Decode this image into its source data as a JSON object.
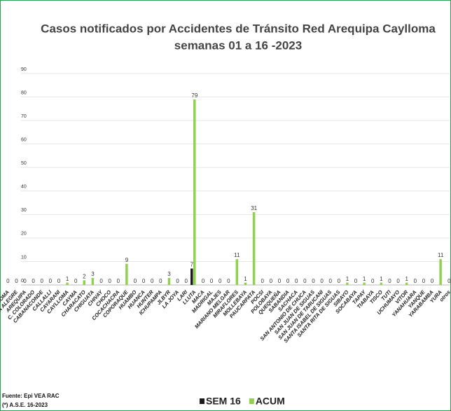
{
  "chart_data": {
    "type": "bar",
    "title": "Casos notificados  por Accidentes de Tránsito Red Arequipa Caylloma",
    "subtitle": "semanas 01 a 16 -2023",
    "categories": [
      "ACHOMA",
      "ALTO SELVA ALEGRE",
      "AREQUIPA",
      "C. COLORADO",
      "CABANACONDE",
      "CALLALLI",
      "CAYARANI",
      "CAYLLOMA",
      "CAYMA",
      "CHARACATO",
      "CHIGUATA",
      "CHIVAY",
      "CHOCO",
      "COCACHACRA",
      "COPORAQUE",
      "HUAMBO",
      "HUANCA",
      "HUNTER",
      "ICHUPAMPA",
      "JLBYR",
      "LA JOYA",
      "LARI",
      "LLUTA",
      "MACA",
      "MADRIGAL",
      "MAJES",
      "MARIANO MELGAR",
      "MIRAFLORES",
      "MOLLEBAYA",
      "PAUCARPATA",
      "POCSI",
      "POLOBAYA",
      "QUEQUEÑA",
      "SABANDIA",
      "SACHACA",
      "SAN ANTONIO DE CHUCA",
      "SAN JUAN DE SIGUAS",
      "SAN JUAN DE TARUCANI",
      "SANTA ISABEL DE SIGUAS",
      "SANTA RITA DE SIGUAS",
      "SIBAYO",
      "SOCABAYA",
      "TAPAY",
      "TIABAYA",
      "TISCO",
      "TUTI",
      "UCHUMAYO",
      "VITOR",
      "YANAHUARA",
      "YANQUE",
      "YARABAMBA",
      "YURA",
      "otros"
    ],
    "series": [
      {
        "name": "SEM 16",
        "color": "#1a1a1a",
        "values": [
          null,
          null,
          null,
          null,
          null,
          null,
          null,
          null,
          null,
          null,
          null,
          null,
          null,
          null,
          null,
          null,
          null,
          null,
          null,
          null,
          null,
          null,
          7,
          null,
          null,
          null,
          null,
          null,
          null,
          null,
          null,
          null,
          null,
          null,
          null,
          null,
          null,
          null,
          null,
          null,
          null,
          null,
          null,
          null,
          null,
          null,
          null,
          null,
          null,
          null,
          null,
          null,
          null
        ]
      },
      {
        "name": "ACUM",
        "color": "#92d050",
        "values": [
          0,
          0,
          0,
          0,
          0,
          0,
          0,
          1,
          0,
          2,
          3,
          0,
          0,
          0,
          9,
          0,
          0,
          0,
          0,
          3,
          0,
          0,
          79,
          0,
          0,
          0,
          0,
          11,
          1,
          31,
          0,
          0,
          0,
          0,
          0,
          0,
          0,
          0,
          0,
          0,
          1,
          0,
          1,
          0,
          1,
          0,
          0,
          1,
          0,
          0,
          0,
          11,
          0
        ]
      }
    ],
    "ylim": [
      0,
      90
    ],
    "yticks": [
      0,
      10,
      20,
      30,
      40,
      50,
      60,
      70,
      80,
      90
    ],
    "grid": true,
    "notes": [
      "Fuente: Epi VEA RAC",
      "(*) A.S.E. 16-2023"
    ]
  }
}
